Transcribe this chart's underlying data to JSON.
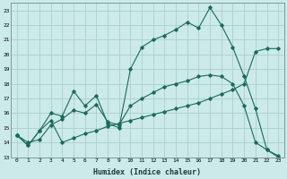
{
  "xlabel": "Humidex (Indice chaleur)",
  "xlim": [
    -0.5,
    23.5
  ],
  "ylim": [
    13,
    23.5
  ],
  "yticks": [
    13,
    14,
    15,
    16,
    17,
    18,
    19,
    20,
    21,
    22,
    23
  ],
  "xticks": [
    0,
    1,
    2,
    3,
    4,
    5,
    6,
    7,
    8,
    9,
    10,
    11,
    12,
    13,
    14,
    15,
    16,
    17,
    18,
    19,
    20,
    21,
    22,
    23
  ],
  "bg_color": "#cceae8",
  "grid_color": "#aacfcc",
  "line_color": "#1a6b5a",
  "main_y": [
    14.5,
    13.8,
    14.8,
    16.0,
    15.8,
    17.5,
    16.5,
    17.2,
    15.3,
    15.0,
    19.0,
    20.5,
    21.0,
    21.3,
    21.7,
    22.2,
    21.8,
    23.2,
    22.0,
    20.5,
    18.5,
    16.3,
    13.5,
    13.0
  ],
  "line2_y": [
    14.5,
    14.0,
    14.2,
    15.2,
    15.6,
    16.2,
    16.0,
    16.6,
    15.4,
    15.2,
    16.5,
    17.0,
    17.4,
    17.8,
    18.0,
    18.2,
    18.5,
    18.6,
    18.5,
    18.0,
    16.5,
    14.0,
    13.5,
    13.1
  ],
  "line3_y": [
    14.5,
    13.8,
    14.8,
    15.5,
    14.0,
    14.3,
    14.6,
    14.8,
    15.1,
    15.3,
    15.5,
    15.7,
    15.9,
    16.1,
    16.3,
    16.5,
    16.7,
    17.0,
    17.3,
    17.6,
    18.0,
    20.2,
    20.4,
    20.4
  ]
}
